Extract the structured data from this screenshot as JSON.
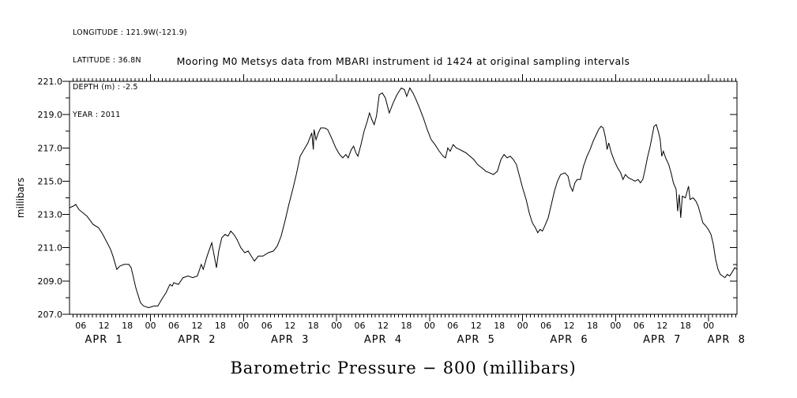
{
  "header": {
    "longitude": "LONGITUDE : 121.9W(-121.9)",
    "latitude": "LATITUDE : 36.8N",
    "depth": "DEPTH (m) : -2.5",
    "year": "YEAR : 2011"
  },
  "colors": {
    "line": "#000000",
    "text": "#000000",
    "background": "#ffffff"
  },
  "chart_data": {
    "type": "line",
    "title": "Mooring M0 Metsys data from MBARI instrument id 1424 at original sampling intervals",
    "xlabel": "Barometric Pressure − 800 (millibars)",
    "ylabel": "millibars",
    "ylim": [
      207.0,
      221.0
    ],
    "x_unit": "hours since 2011 Apr 1 00:00",
    "xlim": [
      3.1,
      175.3
    ],
    "grid": "off",
    "legend": "none",
    "y_ticks": [
      {
        "v": 207,
        "label": "207.0"
      },
      {
        "v": 209,
        "label": "209.0"
      },
      {
        "v": 211,
        "label": "211.0"
      },
      {
        "v": 213,
        "label": "213.0"
      },
      {
        "v": 215,
        "label": "215.0"
      },
      {
        "v": 217,
        "label": "217.0"
      },
      {
        "v": 219,
        "label": "219.0"
      },
      {
        "v": 221,
        "label": "221.0"
      }
    ],
    "y_minor_step": 1,
    "x_minor_step_hours": 1,
    "hour_ticks": [
      {
        "t": 6,
        "label": "06"
      },
      {
        "t": 12,
        "label": "12"
      },
      {
        "t": 18,
        "label": "18"
      },
      {
        "t": 24,
        "label": "00"
      },
      {
        "t": 30,
        "label": "06"
      },
      {
        "t": 36,
        "label": "12"
      },
      {
        "t": 42,
        "label": "18"
      },
      {
        "t": 48,
        "label": "00"
      },
      {
        "t": 54,
        "label": "06"
      },
      {
        "t": 60,
        "label": "12"
      },
      {
        "t": 66,
        "label": "18"
      },
      {
        "t": 72,
        "label": "00"
      },
      {
        "t": 78,
        "label": "06"
      },
      {
        "t": 84,
        "label": "12"
      },
      {
        "t": 90,
        "label": "18"
      },
      {
        "t": 96,
        "label": "00"
      },
      {
        "t": 102,
        "label": "06"
      },
      {
        "t": 108,
        "label": "12"
      },
      {
        "t": 114,
        "label": "18"
      },
      {
        "t": 120,
        "label": "00"
      },
      {
        "t": 126,
        "label": "06"
      },
      {
        "t": 132,
        "label": "12"
      },
      {
        "t": 138,
        "label": "18"
      },
      {
        "t": 144,
        "label": "00"
      },
      {
        "t": 150,
        "label": "06"
      },
      {
        "t": 156,
        "label": "12"
      },
      {
        "t": 162,
        "label": "18"
      },
      {
        "t": 168,
        "label": "00"
      }
    ],
    "day_labels": [
      {
        "t": 12,
        "label": "APR  1"
      },
      {
        "t": 36,
        "label": "APR  2"
      },
      {
        "t": 60,
        "label": "APR  3"
      },
      {
        "t": 84,
        "label": "APR  4"
      },
      {
        "t": 108,
        "label": "APR  5"
      },
      {
        "t": 132,
        "label": "APR  6"
      },
      {
        "t": 156,
        "label": "APR  7"
      },
      {
        "t": 172.6,
        "label": "APR  8"
      }
    ],
    "series": [
      {
        "name": "barometric pressure minus 800",
        "x": [
          3.1,
          4.1,
          4.7,
          5.5,
          7.6,
          9.2,
          10.6,
          11.7,
          13.7,
          14.3,
          15.3,
          16.1,
          17.2,
          18.4,
          19.0,
          19.4,
          20.2,
          21.4,
          22.2,
          23.5,
          24.9,
          25.9,
          26.9,
          28.0,
          29.0,
          29.6,
          30.0,
          31.2,
          32.4,
          33.7,
          34.9,
          36.1,
          37.1,
          37.6,
          38.6,
          39.8,
          41.0,
          41.6,
          42.4,
          43.2,
          44.0,
          44.7,
          45.5,
          46.3,
          47.3,
          48.3,
          49.2,
          50.0,
          50.8,
          51.8,
          53.0,
          54.4,
          55.7,
          56.7,
          57.7,
          58.7,
          59.7,
          60.8,
          61.6,
          62.6,
          63.6,
          64.6,
          65.6,
          66.0,
          66.2,
          66.7,
          67.3,
          67.9,
          68.9,
          69.7,
          70.7,
          71.8,
          72.8,
          73.6,
          74.4,
          75.0,
          75.8,
          76.4,
          77.0,
          77.5,
          78.3,
          79.1,
          79.9,
          80.5,
          81.1,
          81.7,
          82.3,
          83.0,
          83.8,
          84.6,
          85.6,
          86.6,
          87.6,
          88.7,
          89.5,
          90.1,
          90.9,
          91.7,
          92.5,
          93.4,
          94.4,
          95.4,
          96.4,
          97.4,
          98.5,
          99.5,
          100.1,
          100.7,
          101.3,
          102.1,
          102.9,
          103.8,
          104.6,
          105.4,
          106.4,
          107.4,
          108.4,
          109.5,
          110.5,
          111.5,
          112.5,
          113.5,
          114.4,
          115.2,
          116.0,
          116.8,
          117.6,
          118.4,
          119.2,
          120.0,
          120.9,
          121.7,
          122.5,
          123.3,
          123.9,
          124.5,
          125.1,
          125.7,
          126.6,
          127.4,
          128.2,
          129.0,
          129.8,
          130.9,
          131.7,
          132.3,
          132.9,
          133.5,
          134.1,
          134.9,
          135.7,
          136.6,
          137.4,
          138.2,
          139.0,
          139.6,
          140.2,
          140.8,
          141.4,
          141.8,
          142.2,
          142.9,
          143.7,
          144.5,
          145.3,
          145.9,
          146.5,
          147.3,
          148.2,
          149.0,
          149.8,
          150.4,
          151.0,
          151.6,
          152.2,
          152.9,
          153.5,
          153.9,
          154.5,
          155.1,
          155.5,
          155.9,
          156.3,
          156.9,
          157.7,
          158.3,
          158.9,
          159.6,
          160.0,
          160.4,
          160.8,
          161.2,
          162.0,
          162.8,
          163.2,
          164.0,
          164.7,
          165.3,
          165.9,
          166.5,
          167.3,
          167.9,
          168.6,
          169.2,
          169.8,
          170.4,
          171.0,
          171.6,
          172.2,
          172.8,
          173.4,
          174.0,
          174.7,
          175.3
        ],
        "y": [
          213.4,
          213.5,
          213.6,
          213.3,
          212.9,
          212.4,
          212.2,
          211.8,
          210.9,
          210.5,
          209.7,
          209.9,
          210.0,
          210.0,
          209.8,
          209.4,
          208.6,
          207.7,
          207.5,
          207.4,
          207.5,
          207.5,
          207.9,
          208.3,
          208.8,
          208.7,
          208.9,
          208.8,
          209.2,
          209.3,
          209.2,
          209.3,
          210.0,
          209.7,
          210.5,
          211.3,
          209.8,
          210.8,
          211.6,
          211.8,
          211.7,
          212.0,
          211.8,
          211.5,
          211.0,
          210.7,
          210.8,
          210.5,
          210.2,
          210.5,
          210.5,
          210.7,
          210.8,
          211.1,
          211.7,
          212.6,
          213.6,
          214.6,
          215.4,
          216.5,
          216.9,
          217.3,
          217.9,
          216.9,
          218.1,
          217.5,
          217.9,
          218.2,
          218.2,
          218.1,
          217.6,
          217.0,
          216.6,
          216.4,
          216.6,
          216.4,
          216.9,
          217.1,
          216.7,
          216.5,
          217.2,
          218.0,
          218.6,
          219.1,
          218.7,
          218.4,
          218.9,
          220.2,
          220.3,
          220.0,
          219.1,
          219.7,
          220.2,
          220.6,
          220.5,
          220.1,
          220.6,
          220.3,
          219.9,
          219.4,
          218.8,
          218.1,
          217.5,
          217.2,
          216.8,
          216.5,
          216.4,
          217.0,
          216.8,
          217.2,
          217.0,
          216.9,
          216.8,
          216.7,
          216.5,
          216.3,
          216.0,
          215.8,
          215.6,
          215.5,
          215.4,
          215.6,
          216.3,
          216.6,
          216.4,
          216.5,
          216.3,
          216.0,
          215.3,
          214.6,
          213.9,
          213.1,
          212.5,
          212.2,
          211.9,
          212.1,
          212.0,
          212.3,
          212.8,
          213.6,
          214.4,
          215.0,
          215.4,
          215.5,
          215.3,
          214.7,
          214.4,
          214.9,
          215.1,
          215.1,
          215.9,
          216.5,
          216.9,
          217.4,
          217.8,
          218.1,
          218.3,
          218.2,
          217.6,
          216.9,
          217.3,
          216.7,
          216.2,
          215.8,
          215.5,
          215.1,
          215.4,
          215.2,
          215.1,
          215.0,
          215.1,
          214.9,
          215.1,
          215.7,
          216.4,
          217.1,
          217.8,
          218.3,
          218.4,
          217.9,
          217.5,
          216.5,
          216.8,
          216.4,
          216.0,
          215.5,
          214.9,
          214.5,
          213.2,
          214.2,
          212.8,
          214.1,
          214.0,
          214.7,
          213.9,
          214.0,
          213.8,
          213.5,
          213.0,
          212.5,
          212.3,
          212.1,
          211.8,
          211.2,
          210.3,
          209.7,
          209.4,
          209.3,
          209.2,
          209.4,
          209.3,
          209.5,
          209.8,
          209.7
        ]
      }
    ]
  }
}
